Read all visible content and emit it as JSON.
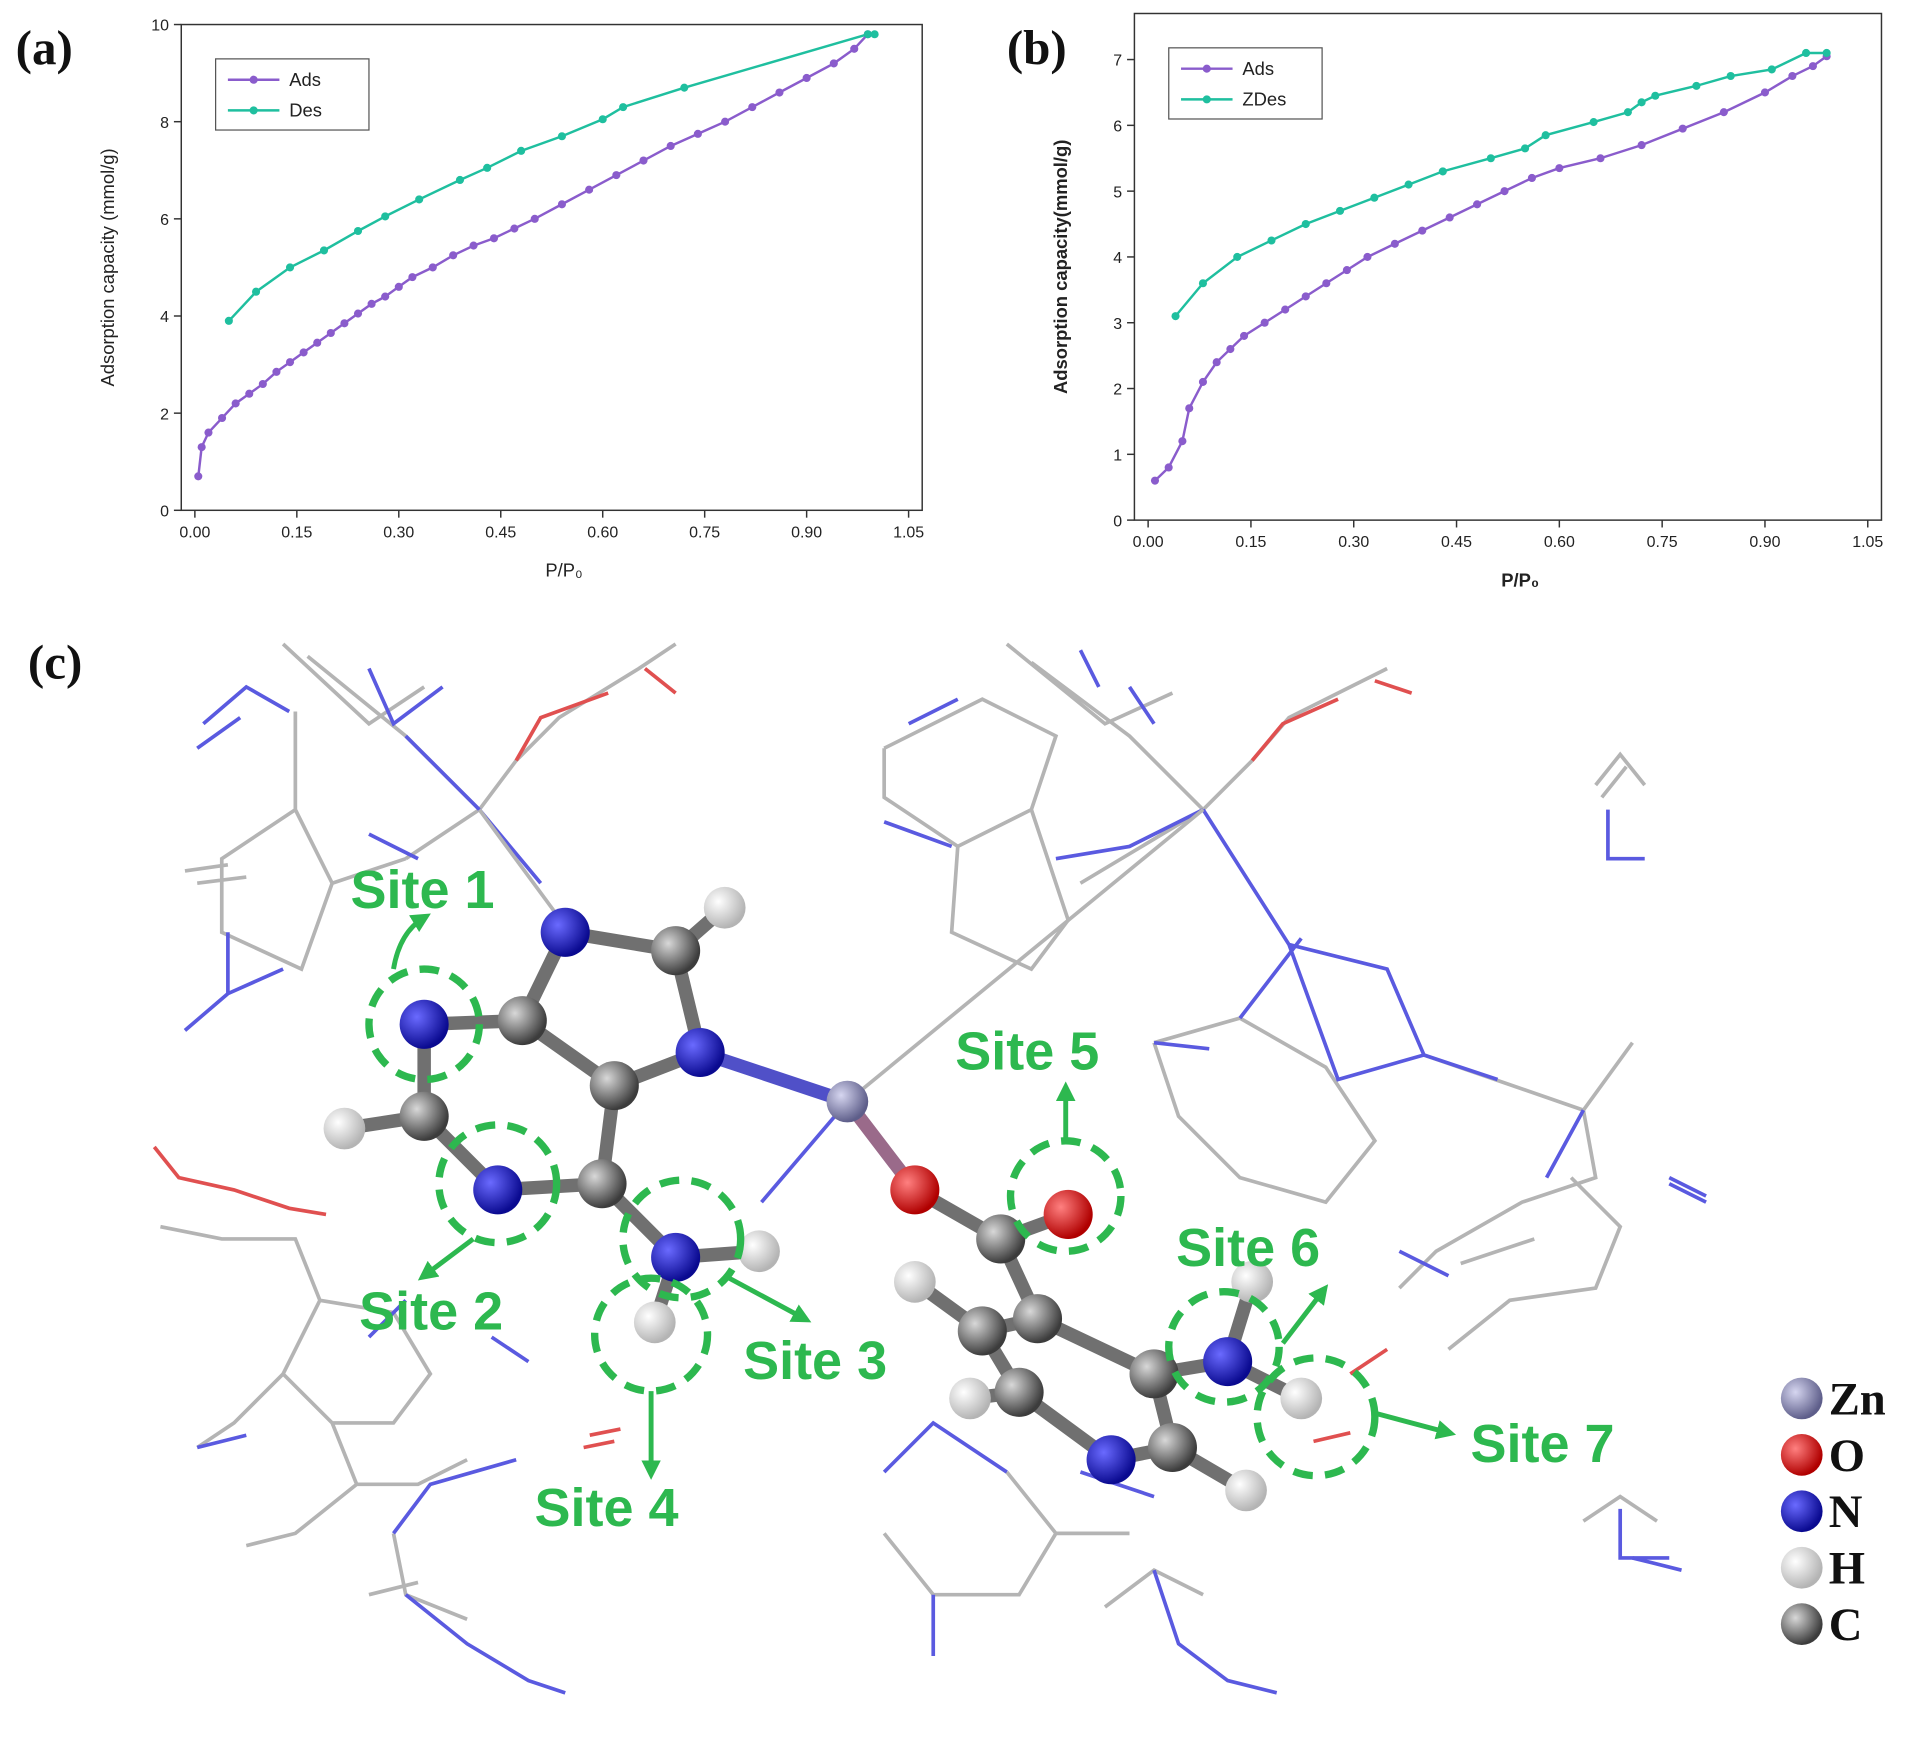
{
  "chart_data": [
    {
      "type": "line",
      "label": "(a)",
      "x_label": "P/P₀",
      "y_label": "Adsorption capacity (mmol/g)",
      "xlim": [
        -0.02,
        1.07
      ],
      "ylim": [
        0,
        10
      ],
      "xticks": [
        {
          "value": 0,
          "label": "0.00"
        },
        0.15,
        {
          "value": 0.3,
          "label": "0.30"
        },
        0.45,
        {
          "value": 0.6,
          "label": "0.60"
        },
        0.75,
        {
          "value": 0.9,
          "label": "0.90"
        },
        1.05
      ],
      "yticks": [
        0,
        2,
        4,
        6,
        8,
        10
      ],
      "legend": "upper left",
      "series": [
        {
          "name": "Ads",
          "color": "#8a5ccc",
          "x": [
            0.005,
            0.01,
            0.02,
            0.04,
            0.06,
            0.08,
            0.1,
            0.12,
            0.14,
            0.16,
            0.18,
            0.2,
            0.22,
            0.24,
            0.26,
            0.28,
            0.3,
            0.32,
            0.35,
            0.38,
            0.41,
            0.44,
            0.47,
            0.5,
            0.54,
            0.58,
            0.62,
            0.66,
            0.7,
            0.74,
            0.78,
            0.82,
            0.86,
            0.9,
            0.94,
            0.97,
            0.99
          ],
          "values": [
            0.7,
            1.3,
            1.6,
            1.9,
            2.2,
            2.4,
            2.6,
            2.85,
            3.05,
            3.25,
            3.45,
            3.65,
            3.85,
            4.05,
            4.25,
            4.4,
            4.6,
            4.8,
            5.0,
            5.25,
            5.45,
            5.6,
            5.8,
            6.0,
            6.3,
            6.6,
            6.9,
            7.2,
            7.5,
            7.75,
            8.0,
            8.3,
            8.6,
            8.9,
            9.2,
            9.5,
            9.8
          ]
        },
        {
          "name": "Des",
          "color": "#1fbf9f",
          "x": [
            0.05,
            0.09,
            0.14,
            0.19,
            0.24,
            0.28,
            0.33,
            0.39,
            0.43,
            0.48,
            0.54,
            0.6,
            0.63,
            0.72,
            0.99,
            1.0
          ],
          "values": [
            3.9,
            4.5,
            5.0,
            5.35,
            5.75,
            6.05,
            6.4,
            6.8,
            7.05,
            7.4,
            7.7,
            8.05,
            8.3,
            8.7,
            9.8,
            9.8
          ]
        }
      ]
    },
    {
      "type": "line",
      "label": "(b)",
      "x_label": "P/P₀",
      "y_label": "Adsorption capacity(mmol/g)",
      "xlim": [
        -0.02,
        1.07
      ],
      "ylim": [
        0,
        7.7
      ],
      "xticks": [
        {
          "value": 0,
          "label": "0.00"
        },
        0.15,
        {
          "value": 0.3,
          "label": "0.30"
        },
        0.45,
        {
          "value": 0.6,
          "label": "0.60"
        },
        0.75,
        {
          "value": 0.9,
          "label": "0.90"
        },
        1.05
      ],
      "yticks": [
        0,
        1,
        2,
        3,
        4,
        5,
        6,
        7
      ],
      "legend": "upper left",
      "series": [
        {
          "name": "Ads",
          "color": "#8a5ccc",
          "x": [
            0.01,
            0.03,
            0.05,
            0.06,
            0.08,
            0.1,
            0.12,
            0.14,
            0.17,
            0.2,
            0.23,
            0.26,
            0.29,
            0.32,
            0.36,
            0.4,
            0.44,
            0.48,
            0.52,
            0.56,
            0.6,
            0.66,
            0.72,
            0.78,
            0.84,
            0.9,
            0.94,
            0.97,
            0.99
          ],
          "values": [
            0.6,
            0.8,
            1.2,
            1.7,
            2.1,
            2.4,
            2.6,
            2.8,
            3.0,
            3.2,
            3.4,
            3.6,
            3.8,
            4.0,
            4.2,
            4.4,
            4.6,
            4.8,
            5.0,
            5.2,
            5.35,
            5.5,
            5.7,
            5.95,
            6.2,
            6.5,
            6.75,
            6.9,
            7.05
          ]
        },
        {
          "name": "ZDes",
          "color": "#1fbf9f",
          "x": [
            0.04,
            0.08,
            0.13,
            0.18,
            0.23,
            0.28,
            0.33,
            0.38,
            0.43,
            0.5,
            0.55,
            0.58,
            0.65,
            0.7,
            0.72,
            0.74,
            0.8,
            0.85,
            0.91,
            0.96,
            0.99
          ],
          "values": [
            3.1,
            3.6,
            4.0,
            4.25,
            4.5,
            4.7,
            4.9,
            5.1,
            5.3,
            5.5,
            5.65,
            5.85,
            6.05,
            6.2,
            6.35,
            6.45,
            6.6,
            6.75,
            6.85,
            7.1,
            7.1
          ]
        }
      ]
    }
  ],
  "diagram": {
    "label": "(c)",
    "sites": [
      "Site 1",
      "Site 2",
      "Site 3",
      "Site 4",
      "Site 5",
      "Site 6",
      "Site 7"
    ],
    "legend": [
      "Zn",
      "O",
      "N",
      "H",
      "C"
    ]
  }
}
